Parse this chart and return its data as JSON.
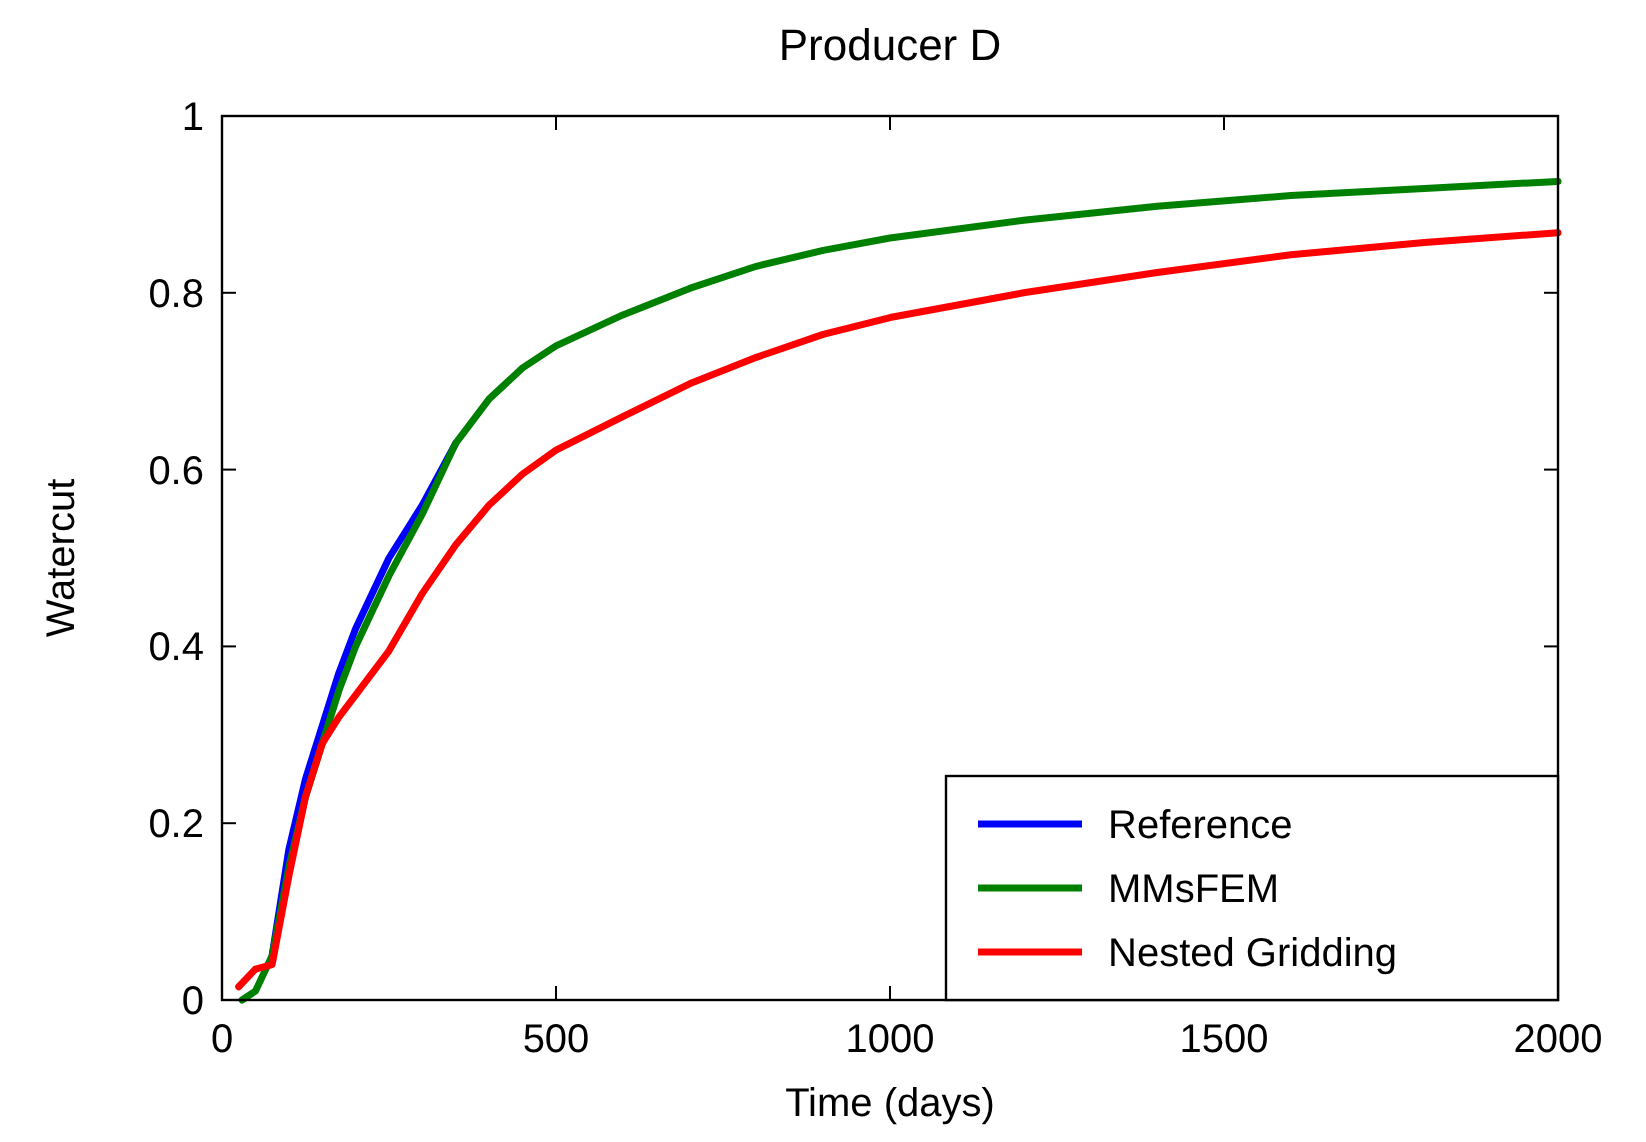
{
  "chart_data": {
    "type": "line",
    "title": "Producer D",
    "xlabel": "Time (days)",
    "ylabel": "Watercut",
    "xlim": [
      0,
      2000
    ],
    "xticks": [
      0,
      500,
      1000,
      1500,
      2000
    ],
    "ylim": [
      0,
      1
    ],
    "yticks": [
      0,
      0.2,
      0.4,
      0.6,
      0.8,
      1
    ],
    "legend": "bottom right",
    "grid": false,
    "line_style": "solid",
    "marker": "none",
    "series": [
      {
        "name": "Reference",
        "color": "#0000ff",
        "x": [
          75,
          100,
          125,
          150,
          175,
          200,
          225,
          250,
          300,
          350
        ],
        "values": [
          0.05,
          0.17,
          0.25,
          0.31,
          0.37,
          0.42,
          0.46,
          0.5,
          0.56,
          0.63
        ]
      },
      {
        "name": "MMsFEM",
        "color": "#008000",
        "x": [
          30,
          50,
          75,
          100,
          125,
          150,
          175,
          200,
          225,
          250,
          300,
          350,
          400,
          450,
          500,
          600,
          700,
          800,
          900,
          1000,
          1200,
          1400,
          1600,
          1800,
          2000
        ],
        "values": [
          0,
          0.01,
          0.05,
          0.15,
          0.23,
          0.29,
          0.35,
          0.4,
          0.44,
          0.48,
          0.55,
          0.63,
          0.68,
          0.715,
          0.74,
          0.775,
          0.805,
          0.83,
          0.848,
          0.862,
          0.882,
          0.898,
          0.91,
          0.918,
          0.926
        ]
      },
      {
        "name": "Nested Gridding",
        "color": "#ff0000",
        "x": [
          25,
          50,
          75,
          100,
          125,
          150,
          175,
          200,
          250,
          300,
          350,
          400,
          450,
          500,
          600,
          700,
          800,
          900,
          1000,
          1200,
          1400,
          1600,
          1800,
          2000
        ],
        "values": [
          0.015,
          0.035,
          0.04,
          0.14,
          0.23,
          0.29,
          0.32,
          0.345,
          0.395,
          0.46,
          0.515,
          0.56,
          0.595,
          0.622,
          0.66,
          0.697,
          0.727,
          0.753,
          0.772,
          0.8,
          0.823,
          0.843,
          0.857,
          0.868
        ]
      }
    ]
  }
}
